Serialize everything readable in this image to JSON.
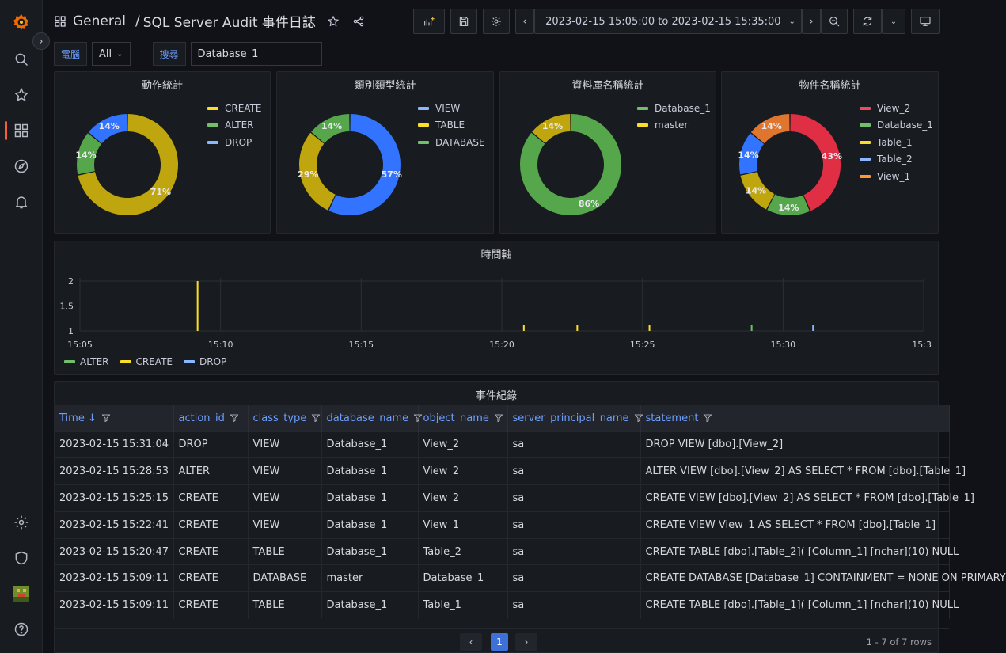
{
  "sidebar": {
    "items": [
      {
        "icon": "grafana-logo-icon"
      },
      {
        "icon": "search-icon"
      },
      {
        "icon": "star-icon"
      },
      {
        "icon": "dashboards-icon",
        "active": true
      },
      {
        "icon": "explore-compass-icon"
      },
      {
        "icon": "alerting-bell-icon"
      },
      {
        "icon": "gear-icon"
      },
      {
        "icon": "shield-icon"
      },
      {
        "icon": "avatar"
      },
      {
        "icon": "help-icon"
      }
    ]
  },
  "header": {
    "folder": "General",
    "separator": "/",
    "title": "SQL Server Audit 事件日誌",
    "time_range": "2023-02-15 15:05:00 to 2023-02-15 15:35:00"
  },
  "variables": [
    {
      "label": "電腦",
      "type": "select",
      "value": "All"
    },
    {
      "label": "搜尋",
      "type": "text",
      "value": "Database_1"
    }
  ],
  "colors": {
    "yellow": "#c0a60e",
    "green": "#56a64b",
    "blue": "#3274ff",
    "red": "#e02f44",
    "orange": "#e0752d",
    "light_blue": "#8ab8ff",
    "legend_yellow": "#fade2a",
    "legend_blue": "#8ab8ff",
    "legend_green": "#73bf69",
    "legend_red": "#f2495c"
  },
  "chart_data": [
    {
      "type": "pie",
      "title": "動作統計",
      "labels": [
        "CREATE",
        "ALTER",
        "DROP"
      ],
      "values": [
        71,
        14,
        14
      ],
      "value_labels": [
        "71%",
        "14%",
        "14%"
      ],
      "colors": [
        "#c0a60e",
        "#56a64b",
        "#3274ff"
      ],
      "legend_colors": [
        "#fade2a",
        "#73bf69",
        "#8ab8ff"
      ],
      "legend": "right"
    },
    {
      "type": "pie",
      "title": "類別類型統計",
      "labels": [
        "VIEW",
        "TABLE",
        "DATABASE"
      ],
      "values": [
        57,
        29,
        14
      ],
      "value_labels": [
        "57%",
        "29%",
        "14%"
      ],
      "colors": [
        "#3274ff",
        "#c0a60e",
        "#56a64b"
      ],
      "legend_colors": [
        "#8ab8ff",
        "#fade2a",
        "#73bf69"
      ],
      "legend": "right"
    },
    {
      "type": "pie",
      "title": "資料庫名稱統計",
      "labels": [
        "Database_1",
        "master"
      ],
      "values": [
        86,
        14
      ],
      "value_labels": [
        "86%",
        "14%"
      ],
      "colors": [
        "#56a64b",
        "#c0a60e"
      ],
      "legend_colors": [
        "#73bf69",
        "#fade2a"
      ],
      "legend": "right"
    },
    {
      "type": "pie",
      "title": "物件名稱統計",
      "labels": [
        "View_2",
        "Database_1",
        "Table_1",
        "Table_2",
        "View_1"
      ],
      "values": [
        43,
        14,
        14,
        14,
        14
      ],
      "value_labels": [
        "43%",
        "14%",
        "14%",
        "14%",
        "14%"
      ],
      "colors": [
        "#e02f44",
        "#56a64b",
        "#c0a60e",
        "#3274ff",
        "#e0752d"
      ],
      "legend_colors": [
        "#f2495c",
        "#73bf69",
        "#fade2a",
        "#8ab8ff",
        "#ff9830"
      ],
      "legend": "right"
    },
    {
      "type": "bar",
      "title": "時間軸",
      "x_ticks": [
        "15:05",
        "15:10",
        "15:15",
        "15:20",
        "15:25",
        "15:30",
        "15:3"
      ],
      "y_ticks": [
        "2",
        "1.5",
        "1"
      ],
      "ylim": [
        1,
        2
      ],
      "xlim": [
        "15:05",
        "15:35"
      ],
      "series": [
        {
          "name": "ALTER",
          "color": "#73bf69",
          "points": [
            {
              "t": "15:28:53",
              "v": 1
            }
          ]
        },
        {
          "name": "CREATE",
          "color": "#fade2a",
          "points": [
            {
              "t": "15:09:11",
              "v": 2
            },
            {
              "t": "15:20:47",
              "v": 1
            },
            {
              "t": "15:22:41",
              "v": 1
            },
            {
              "t": "15:25:15",
              "v": 1
            }
          ]
        },
        {
          "name": "DROP",
          "color": "#8ab8ff",
          "points": [
            {
              "t": "15:31:04",
              "v": 1
            }
          ]
        }
      ],
      "legend": "bottom-left"
    }
  ],
  "table": {
    "title": "事件紀錄",
    "columns": [
      "Time ↓",
      "action_id",
      "class_type",
      "database_name",
      "object_name",
      "server_principal_name",
      "statement"
    ],
    "rows": [
      [
        "2023-02-15 15:31:04",
        "DROP",
        "VIEW",
        "Database_1",
        "View_2",
        "sa",
        "DROP VIEW [dbo].[View_2]"
      ],
      [
        "2023-02-15 15:28:53",
        "ALTER",
        "VIEW",
        "Database_1",
        "View_2",
        "sa",
        "ALTER VIEW [dbo].[View_2] AS SELECT * FROM [dbo].[Table_1]"
      ],
      [
        "2023-02-15 15:25:15",
        "CREATE",
        "VIEW",
        "Database_1",
        "View_2",
        "sa",
        "CREATE VIEW [dbo].[View_2] AS SELECT * FROM [dbo].[Table_1]"
      ],
      [
        "2023-02-15 15:22:41",
        "CREATE",
        "VIEW",
        "Database_1",
        "View_1",
        "sa",
        "CREATE VIEW View_1 AS SELECT * FROM [dbo].[Table_1]"
      ],
      [
        "2023-02-15 15:20:47",
        "CREATE",
        "TABLE",
        "Database_1",
        "Table_2",
        "sa",
        "CREATE TABLE [dbo].[Table_2]( [Column_1] [nchar](10) NULL"
      ],
      [
        "2023-02-15 15:09:11",
        "CREATE",
        "DATABASE",
        "master",
        "Database_1",
        "sa",
        "CREATE DATABASE [Database_1] CONTAINMENT = NONE ON PRIMARY"
      ],
      [
        "2023-02-15 15:09:11",
        "CREATE",
        "TABLE",
        "Database_1",
        "Table_1",
        "sa",
        "CREATE TABLE [dbo].[Table_1]( [Column_1] [nchar](10) NULL"
      ]
    ],
    "pagination": {
      "prev": "‹",
      "current": "1",
      "next": "›",
      "info": "1 - 7 of 7 rows"
    }
  }
}
